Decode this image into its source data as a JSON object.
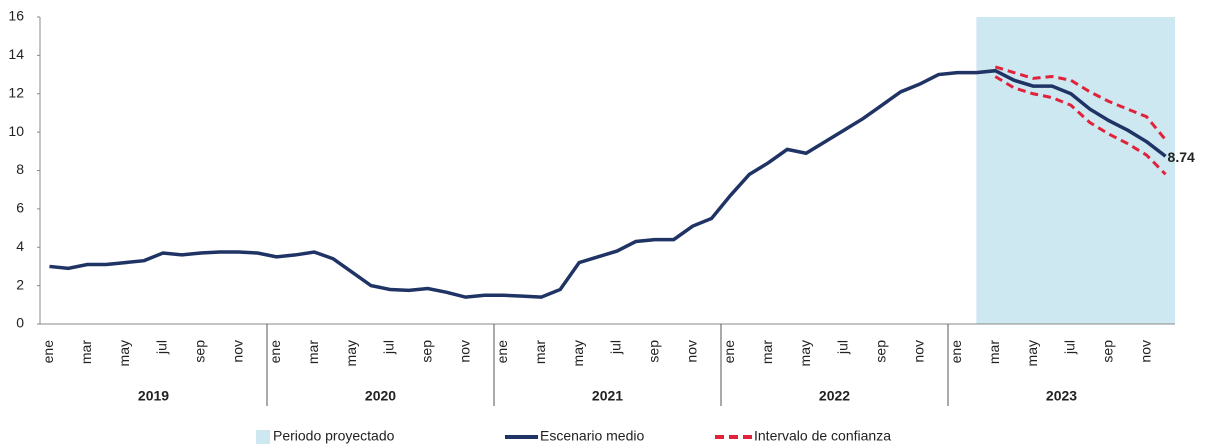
{
  "chart_data": {
    "type": "line",
    "categories": [
      "ene",
      null,
      "mar",
      null,
      "may",
      null,
      "jul",
      null,
      "sep",
      null,
      "nov",
      null,
      "ene",
      null,
      "mar",
      null,
      "may",
      null,
      "jul",
      null,
      "sep",
      null,
      "nov",
      null,
      "ene",
      null,
      "mar",
      null,
      "may",
      null,
      "jul",
      null,
      "sep",
      null,
      "nov",
      null,
      "ene",
      null,
      "mar",
      null,
      "may",
      null,
      "jul",
      null,
      "sep",
      null,
      "nov",
      null,
      "ene",
      null,
      "mar",
      null,
      "may",
      null,
      "jul",
      null,
      "sep",
      null,
      "nov",
      null
    ],
    "years": [
      "2019",
      "2020",
      "2021",
      "2022",
      "2023"
    ],
    "series": [
      {
        "name": "Escenario medio",
        "color": "#1f3364",
        "values": [
          3.0,
          2.9,
          3.1,
          3.1,
          3.2,
          3.3,
          3.7,
          3.6,
          3.7,
          3.75,
          3.75,
          3.7,
          3.5,
          3.6,
          3.75,
          3.4,
          2.7,
          2.0,
          1.8,
          1.75,
          1.85,
          1.65,
          1.4,
          1.5,
          1.5,
          1.45,
          1.4,
          1.8,
          3.2,
          3.5,
          3.8,
          4.3,
          4.4,
          4.4,
          5.1,
          5.5,
          6.7,
          7.8,
          8.4,
          9.1,
          8.9,
          9.5,
          10.1,
          10.7,
          11.4,
          12.1,
          12.5,
          13.0,
          13.1,
          13.1,
          13.2,
          12.7,
          12.4,
          12.4,
          12.0,
          11.2,
          10.6,
          10.1,
          9.5,
          8.74
        ]
      }
    ],
    "confidence": {
      "name": "Intervalo de confianza",
      "color": "#e0223b",
      "upper": [
        null,
        null,
        null,
        null,
        null,
        null,
        null,
        null,
        null,
        null,
        null,
        null,
        null,
        null,
        null,
        null,
        null,
        null,
        null,
        null,
        null,
        null,
        null,
        null,
        null,
        null,
        null,
        null,
        null,
        null,
        null,
        null,
        null,
        null,
        null,
        null,
        null,
        null,
        null,
        null,
        null,
        null,
        null,
        null,
        null,
        null,
        null,
        null,
        null,
        null,
        13.4,
        13.1,
        12.8,
        12.9,
        12.7,
        12.1,
        11.6,
        11.2,
        10.8,
        9.6
      ],
      "lower": [
        null,
        null,
        null,
        null,
        null,
        null,
        null,
        null,
        null,
        null,
        null,
        null,
        null,
        null,
        null,
        null,
        null,
        null,
        null,
        null,
        null,
        null,
        null,
        null,
        null,
        null,
        null,
        null,
        null,
        null,
        null,
        null,
        null,
        null,
        null,
        null,
        null,
        null,
        null,
        null,
        null,
        null,
        null,
        null,
        null,
        null,
        null,
        null,
        null,
        null,
        12.9,
        12.3,
        12.0,
        11.8,
        11.4,
        10.5,
        9.9,
        9.4,
        8.8,
        7.8
      ]
    },
    "projection": {
      "name": "Periodo proyectado",
      "color": "#cde8f1",
      "start": 49
    },
    "ylim": [
      0,
      16
    ],
    "yticks": [
      0,
      2,
      4,
      6,
      8,
      10,
      12,
      14,
      16
    ]
  }
}
